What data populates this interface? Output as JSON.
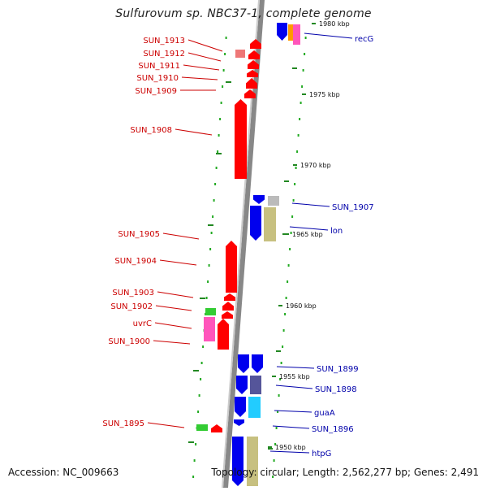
{
  "title": "Sulfurovum sp. NBC37-1, complete genome",
  "accession_text": "Accession: NC_009663",
  "topology_text": "Topology: circular; Length: 2,562,277 bp; Genes: 2,491",
  "colors": {
    "left_label": "#cc0000",
    "right_label": "#0000aa",
    "backbone": "#888888",
    "gc_dot": "#22aa22",
    "red_gene": "#ff0000",
    "blue_gene": "#0000ee",
    "khaki_gene": "#c7c080",
    "cyan_gene": "#22ccff",
    "slate_gene": "#55559a",
    "magenta_gene": "#ff55bb",
    "orange_gene": "#ff9900",
    "green_gene": "#33cc33",
    "pink_gene": "#ee7777",
    "gray_gene": "#bbbbbb"
  },
  "scale_ticks": [
    {
      "label": "1980 kbp"
    },
    {
      "label": "1975 kbp"
    },
    {
      "label": "1970 kbp"
    },
    {
      "label": "1965 kbp"
    },
    {
      "label": "1960 kbp"
    },
    {
      "label": "1955 kbp"
    },
    {
      "label": "1950 kbp"
    }
  ],
  "left_labels": [
    {
      "text": "SUN_1913"
    },
    {
      "text": "SUN_1912"
    },
    {
      "text": "SUN_1911"
    },
    {
      "text": "SUN_1910"
    },
    {
      "text": "SUN_1909"
    },
    {
      "text": "SUN_1908"
    },
    {
      "text": "SUN_1905"
    },
    {
      "text": "SUN_1904"
    },
    {
      "text": "SUN_1903"
    },
    {
      "text": "SUN_1902"
    },
    {
      "text": "uvrC"
    },
    {
      "text": "SUN_1900"
    },
    {
      "text": "SUN_1895"
    }
  ],
  "right_labels": [
    {
      "text": "recG"
    },
    {
      "text": "SUN_1907"
    },
    {
      "text": "lon"
    },
    {
      "text": "SUN_1899"
    },
    {
      "text": "SUN_1898"
    },
    {
      "text": "guaA"
    },
    {
      "text": "SUN_1896"
    },
    {
      "text": "htpG"
    }
  ]
}
